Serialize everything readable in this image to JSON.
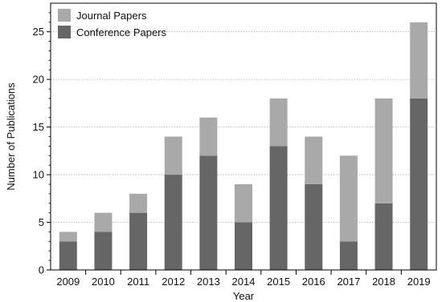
{
  "chart_data": {
    "type": "bar",
    "stacked": true,
    "categories": [
      "2009",
      "2010",
      "2011",
      "2012",
      "2013",
      "2014",
      "2015",
      "2016",
      "2017",
      "2018",
      "2019"
    ],
    "series": [
      {
        "name": "Conference Papers",
        "values": [
          3,
          4,
          6,
          10,
          12,
          5,
          13,
          9,
          3,
          7,
          18
        ],
        "color": "#666666"
      },
      {
        "name": "Journal Papers",
        "values": [
          1,
          2,
          2,
          4,
          4,
          4,
          5,
          5,
          9,
          11,
          8
        ],
        "color": "#a9a9a9"
      }
    ],
    "legend_order": [
      "Journal Papers",
      "Conference Papers"
    ],
    "xlabel": "Year",
    "ylabel": "Number of Publications",
    "ylim": [
      0,
      28
    ],
    "yticks": [
      "0",
      "5",
      "10",
      "15",
      "20",
      "25"
    ],
    "grid": "horizontal dotted",
    "legend_position": "top-left"
  }
}
